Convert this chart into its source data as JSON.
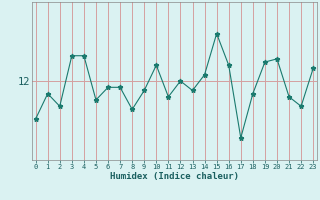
{
  "xlabel": "Humidex (Indice chaleur)",
  "x_values": [
    0,
    1,
    2,
    3,
    4,
    5,
    6,
    7,
    8,
    9,
    10,
    11,
    12,
    13,
    14,
    15,
    16,
    17,
    18,
    19,
    20,
    21,
    22,
    23
  ],
  "y_values": [
    10.8,
    11.6,
    11.2,
    12.8,
    12.8,
    11.4,
    11.8,
    11.8,
    11.1,
    11.7,
    12.5,
    11.5,
    12.0,
    11.7,
    12.2,
    13.5,
    12.5,
    10.2,
    11.6,
    12.6,
    12.7,
    11.5,
    11.2,
    12.4
  ],
  "ytick_values": [
    12
  ],
  "ytick_labels": [
    "12"
  ],
  "line_color": "#1a7a6e",
  "marker": "*",
  "marker_size": 3.5,
  "bg_color": "#daf2f2",
  "plot_bg_color": "#daf2f2",
  "grid_color": "#d4a0a0",
  "ylim_min": 9.5,
  "ylim_max": 14.5,
  "xlim_min": -0.3,
  "xlim_max": 23.3,
  "tick_color": "#1a5f5f",
  "label_color": "#1a5f5f"
}
